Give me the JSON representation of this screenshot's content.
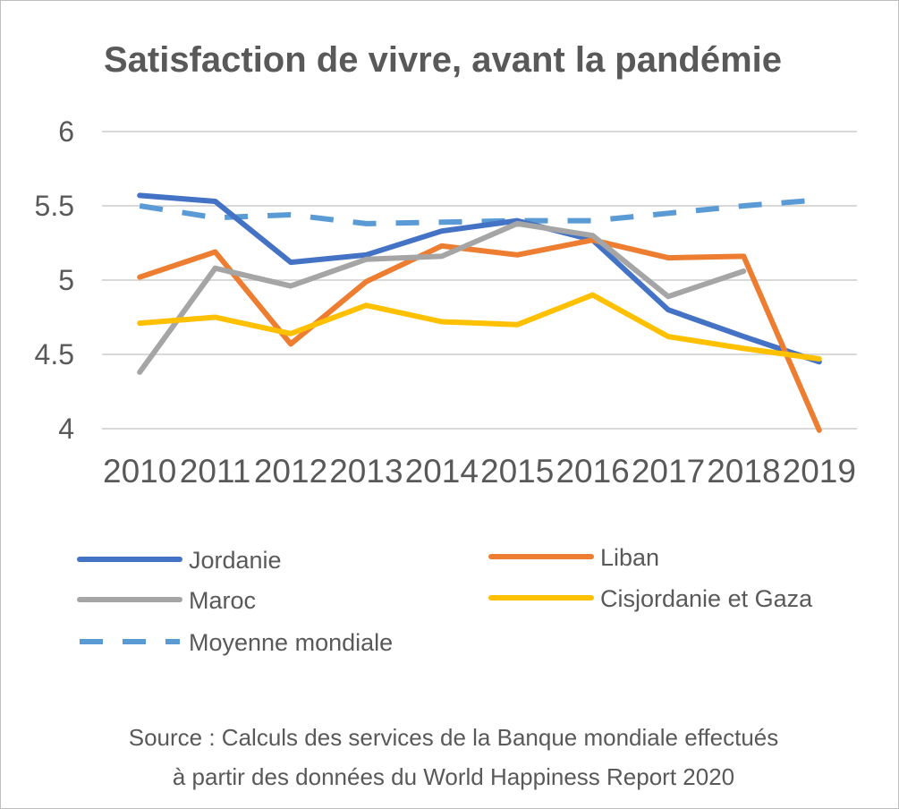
{
  "chart_data": {
    "type": "line",
    "title": "Satisfaction de vivre, avant la pandémie",
    "xlabel": "",
    "ylabel": "",
    "categories": [
      "2010",
      "2011",
      "2012",
      "2013",
      "2014",
      "2015",
      "2016",
      "2017",
      "2018",
      "2019"
    ],
    "yticks": [
      "4",
      "4.5",
      "5",
      "5.5",
      "6"
    ],
    "ylim": [
      4,
      6
    ],
    "grid": true,
    "legend_position": "bottom",
    "series": [
      {
        "name": "Jordanie",
        "color": "#4472c4",
        "dashed": false,
        "values": [
          5.57,
          5.53,
          5.12,
          5.17,
          5.33,
          5.4,
          5.27,
          4.8,
          4.62,
          4.45
        ]
      },
      {
        "name": "Liban",
        "color": "#ed7d31",
        "dashed": false,
        "values": [
          5.02,
          5.19,
          4.57,
          4.99,
          5.23,
          5.17,
          5.27,
          5.15,
          5.16,
          3.99
        ]
      },
      {
        "name": "Maroc",
        "color": "#a5a5a5",
        "dashed": false,
        "values": [
          4.38,
          5.08,
          4.96,
          5.14,
          5.16,
          5.38,
          5.3,
          4.89,
          5.06,
          null
        ]
      },
      {
        "name": "Cisjordanie et Gaza",
        "color": "#ffc000",
        "dashed": false,
        "values": [
          4.71,
          4.75,
          4.64,
          4.83,
          4.72,
          4.7,
          4.9,
          4.62,
          4.54,
          4.47
        ]
      },
      {
        "name": "Moyenne mondiale",
        "color": "#5b9bd5",
        "dashed": true,
        "values": [
          5.5,
          5.42,
          5.44,
          5.38,
          5.39,
          5.4,
          5.4,
          5.45,
          5.5,
          5.54
        ]
      }
    ]
  },
  "source_lines": [
    "Source : Calculs des services de la Banque mondiale effectués",
    "à partir des données du World Happiness Report 2020"
  ]
}
